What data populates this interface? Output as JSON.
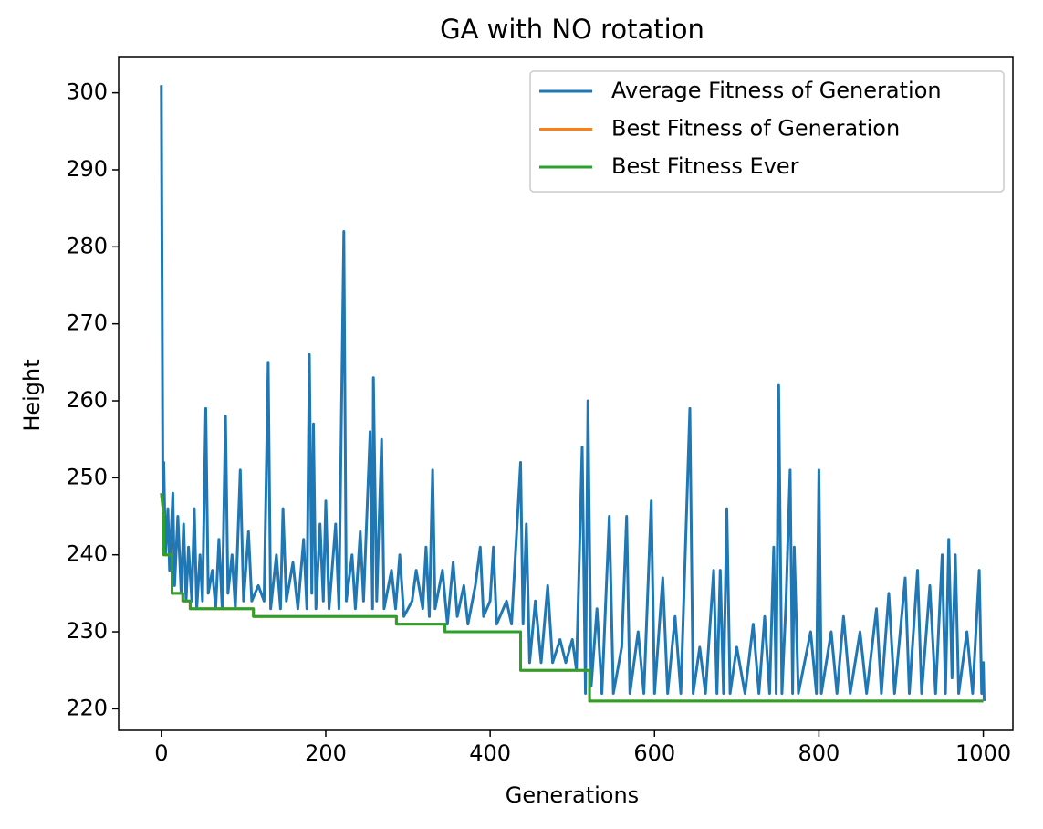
{
  "chart_data": {
    "type": "line",
    "title": "GA with NO rotation",
    "x_label": "Generations",
    "y_label": "Height",
    "xlim": [
      -52,
      1036
    ],
    "ylim": [
      217.2,
      304.7
    ],
    "xticks": [
      0,
      200,
      400,
      600,
      800,
      1000
    ],
    "yticks": [
      220,
      230,
      240,
      250,
      260,
      270,
      280,
      290,
      300
    ],
    "legend": "upper right",
    "grid": false,
    "series": [
      {
        "name": "Average Fitness of Generation",
        "color": "#1f77b4",
        "x": [
          0,
          2,
          3,
          5,
          8,
          10,
          14,
          16,
          20,
          24,
          27,
          30,
          33,
          37,
          40,
          43,
          47,
          50,
          54,
          57,
          62,
          66,
          70,
          74,
          78,
          81,
          86,
          90,
          96,
          100,
          106,
          110,
          118,
          125,
          130,
          133,
          140,
          145,
          148,
          152,
          160,
          166,
          173,
          177,
          180,
          183,
          185,
          188,
          193,
          197,
          200,
          204,
          212,
          216,
          222,
          225,
          232,
          236,
          242,
          246,
          254,
          257,
          258,
          262,
          268,
          271,
          280,
          285,
          290,
          295,
          305,
          310,
          318,
          322,
          326,
          330,
          333,
          342,
          348,
          355,
          360,
          368,
          373,
          382,
          388,
          392,
          400,
          404,
          408,
          420,
          426,
          437,
          440,
          444,
          448,
          455,
          462,
          470,
          476,
          485,
          492,
          500,
          505,
          512,
          516,
          519,
          523,
          530,
          536,
          545,
          550,
          560,
          566,
          570,
          580,
          587,
          596,
          600,
          610,
          616,
          625,
          632,
          643,
          647,
          655,
          662,
          672,
          676,
          680,
          684,
          688,
          692,
          700,
          710,
          720,
          727,
          734,
          740,
          745,
          748,
          751,
          755,
          760,
          765,
          768,
          770,
          775,
          790,
          797,
          800,
          803,
          815,
          822,
          830,
          838,
          850,
          858,
          870,
          876,
          885,
          892,
          905,
          910,
          920,
          925,
          935,
          942,
          950,
          954,
          958,
          962,
          966,
          970,
          980,
          987,
          995,
          998,
          1000,
          1001
        ],
        "values": [
          301,
          245,
          252,
          240,
          246,
          238,
          248,
          236,
          245,
          235,
          244,
          234,
          241,
          234,
          246,
          233,
          240,
          234,
          259,
          235,
          238,
          233,
          242,
          233,
          258,
          235,
          240,
          233,
          251,
          234,
          243,
          234,
          236,
          234,
          265,
          233,
          240,
          233,
          246,
          234,
          239,
          233,
          242,
          233,
          266,
          235,
          257,
          233,
          244,
          234,
          247,
          233,
          244,
          233,
          282,
          234,
          240,
          233,
          243,
          234,
          256,
          233,
          263,
          234,
          255,
          233,
          238,
          233,
          240,
          232,
          234,
          238,
          233,
          241,
          232,
          251,
          233,
          238,
          231,
          239,
          232,
          236,
          231,
          236,
          241,
          232,
          234,
          241,
          231,
          234,
          231,
          252,
          231,
          244,
          226,
          234,
          226,
          236,
          226,
          229,
          226,
          229,
          225,
          254,
          222,
          260,
          223,
          233,
          222,
          245,
          222,
          228,
          245,
          222,
          230,
          222,
          247,
          222,
          237,
          222,
          232,
          222,
          259,
          222,
          228,
          222,
          238,
          222,
          238,
          222,
          246,
          222,
          228,
          222,
          231,
          222,
          232,
          222,
          241,
          222,
          262,
          222,
          234,
          251,
          222,
          241,
          222,
          230,
          222,
          251,
          222,
          230,
          222,
          232,
          222,
          230,
          222,
          233,
          222,
          235,
          222,
          237,
          222,
          238,
          222,
          236,
          222,
          240,
          222,
          242,
          224,
          240,
          222,
          230,
          222,
          238,
          222,
          226,
          221
        ]
      },
      {
        "name": "Best Fitness of Generation",
        "color": "#ff7f0e",
        "x": [
          0,
          3,
          3,
          13,
          13,
          26,
          26,
          35,
          35,
          112,
          112,
          286,
          286,
          345,
          345,
          437,
          437,
          521,
          521,
          1000
        ],
        "values": [
          248,
          245,
          240,
          240,
          235,
          235,
          234,
          234,
          233,
          233,
          232,
          232,
          231,
          231,
          230,
          230,
          225,
          225,
          221,
          221
        ]
      },
      {
        "name": "Best Fitness Ever",
        "color": "#2ca02c",
        "x": [
          0,
          3,
          3,
          13,
          13,
          26,
          26,
          35,
          35,
          112,
          112,
          286,
          286,
          345,
          345,
          437,
          437,
          521,
          521,
          1000
        ],
        "values": [
          248,
          245,
          240,
          240,
          235,
          235,
          234,
          234,
          233,
          233,
          232,
          232,
          231,
          231,
          230,
          230,
          225,
          225,
          221,
          221
        ]
      }
    ]
  }
}
